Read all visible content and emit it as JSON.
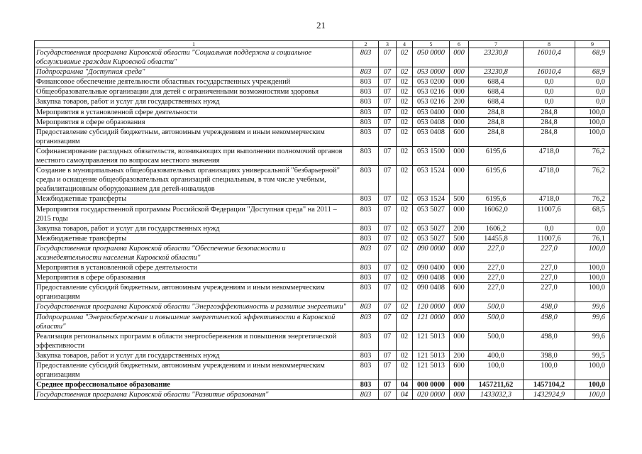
{
  "page_number": "21",
  "columns": [
    "1",
    "2",
    "3",
    "4",
    "5",
    "6",
    "7",
    "8",
    "9"
  ],
  "rows": [
    {
      "style": "italic",
      "c": [
        "Государственная программа Кировской области \"Социальная поддержка и социальное обслуживание граждан Кировской области\"",
        "803",
        "07",
        "02",
        "050 0000",
        "000",
        "23230,8",
        "16010,4",
        "68,9"
      ]
    },
    {
      "style": "italic",
      "c": [
        "Подпрограмма \"Доступная среда\"",
        "803",
        "07",
        "02",
        "053 0000",
        "000",
        "23230,8",
        "16010,4",
        "68,9"
      ]
    },
    {
      "style": "normal",
      "c": [
        "Финансовое обеспечение деятельности областных государственных учреждений",
        "803",
        "07",
        "02",
        "053 0200",
        "000",
        "688,4",
        "0,0",
        "0,0"
      ]
    },
    {
      "style": "normal",
      "c": [
        "Общеобразовательные организации для детей с ограниченными возможностями здоровья",
        "803",
        "07",
        "02",
        "053 0216",
        "000",
        "688,4",
        "0,0",
        "0,0"
      ]
    },
    {
      "style": "normal",
      "c": [
        "Закупка товаров, работ и услуг для государственных нужд",
        "803",
        "07",
        "02",
        "053 0216",
        "200",
        "688,4",
        "0,0",
        "0,0"
      ]
    },
    {
      "style": "normal",
      "c": [
        "Мероприятия в установленной сфере деятельности",
        "803",
        "07",
        "02",
        "053 0400",
        "000",
        "284,8",
        "284,8",
        "100,0"
      ]
    },
    {
      "style": "normal",
      "c": [
        "Мероприятия в сфере образования",
        "803",
        "07",
        "02",
        "053 0408",
        "000",
        "284,8",
        "284,8",
        "100,0"
      ]
    },
    {
      "style": "normal",
      "c": [
        "Предоставление субсидий бюджетным, автономным учреждениям и иным некоммерческим организациям",
        "803",
        "07",
        "02",
        "053 0408",
        "600",
        "284,8",
        "284,8",
        "100,0"
      ]
    },
    {
      "style": "normal",
      "c": [
        "Софинансирование расходных обязательств, возникающих при выполнении полномочий органов местного самоуправления по вопросам местного значения",
        "803",
        "07",
        "02",
        "053 1500",
        "000",
        "6195,6",
        "4718,0",
        "76,2"
      ]
    },
    {
      "style": "normal",
      "c": [
        "Создание в муниципальных общеобразовательных организациях универсальной \"безбарьерной\" среды и оснащение общеобразовательных организаций специальным, в том числе учебным, реабилитационным оборудованием для детей-инвалидов",
        "803",
        "07",
        "02",
        "053 1524",
        "000",
        "6195,6",
        "4718,0",
        "76,2"
      ]
    },
    {
      "style": "normal",
      "c": [
        "Межбюджетные трансферты",
        "803",
        "07",
        "02",
        "053 1524",
        "500",
        "6195,6",
        "4718,0",
        "76,2"
      ]
    },
    {
      "style": "normal",
      "c": [
        "Мероприятия государственной программы Российской Федерации \"Доступная среда\" на 2011 – 2015 годы",
        "803",
        "07",
        "02",
        "053 5027",
        "000",
        "16062,0",
        "11007,6",
        "68,5"
      ]
    },
    {
      "style": "normal",
      "c": [
        "Закупка товаров, работ и услуг для государственных нужд",
        "803",
        "07",
        "02",
        "053 5027",
        "200",
        "1606,2",
        "0,0",
        "0,0"
      ]
    },
    {
      "style": "normal",
      "c": [
        "Межбюджетные трансферты",
        "803",
        "07",
        "02",
        "053 5027",
        "500",
        "14455,8",
        "11007,6",
        "76,1"
      ]
    },
    {
      "style": "italic",
      "c": [
        "Государственная программа Кировской области \"Обеспечение безопасности и жизнедеятельности населения Кировской области\"",
        "803",
        "07",
        "02",
        "090 0000",
        "000",
        "227,0",
        "227,0",
        "100,0"
      ]
    },
    {
      "style": "normal",
      "c": [
        "Мероприятия в установленной сфере деятельности",
        "803",
        "07",
        "02",
        "090 0400",
        "000",
        "227,0",
        "227,0",
        "100,0"
      ]
    },
    {
      "style": "normal",
      "c": [
        "Мероприятия в сфере образования",
        "803",
        "07",
        "02",
        "090 0408",
        "000",
        "227,0",
        "227,0",
        "100,0"
      ]
    },
    {
      "style": "normal",
      "c": [
        "Предоставление субсидий бюджетным, автономным учреждениям и иным некоммерческим организациям",
        "803",
        "07",
        "02",
        "090 0408",
        "600",
        "227,0",
        "227,0",
        "100,0"
      ]
    },
    {
      "style": "italic",
      "c": [
        "Государственная программа Кировской области \"Энергоэффективность и развитие энергетики\"",
        "803",
        "07",
        "02",
        "120 0000",
        "000",
        "500,0",
        "498,0",
        "99,6"
      ]
    },
    {
      "style": "italic",
      "c": [
        "Подпрограмма \"Энергосбережение и повышение энергетической эффективности в Кировской области\"",
        "803",
        "07",
        "02",
        "121 0000",
        "000",
        "500,0",
        "498,0",
        "99,6"
      ]
    },
    {
      "style": "normal",
      "c": [
        "Реализация региональных программ в области энергосбережения и повышения энергетической эффективности",
        "803",
        "07",
        "02",
        "121 5013",
        "000",
        "500,0",
        "498,0",
        "99,6"
      ]
    },
    {
      "style": "normal",
      "c": [
        "Закупка товаров, работ и услуг для государственных нужд",
        "803",
        "07",
        "02",
        "121 5013",
        "200",
        "400,0",
        "398,0",
        "99,5"
      ]
    },
    {
      "style": "normal",
      "c": [
        "Предоставление субсидий бюджетным, автономным учреждениям и иным некоммерческим организациям",
        "803",
        "07",
        "02",
        "121 5013",
        "600",
        "100,0",
        "100,0",
        "100,0"
      ]
    },
    {
      "style": "bold",
      "c": [
        "Среднее профессиональное образование",
        "803",
        "07",
        "04",
        "000 0000",
        "000",
        "1457211,62",
        "1457104,2",
        "100,0"
      ]
    },
    {
      "style": "italic",
      "c": [
        "Государственная программа Кировской области \"Развитие образования\"",
        "803",
        "07",
        "04",
        "020 0000",
        "000",
        "1433032,3",
        "1432924,9",
        "100,0"
      ]
    }
  ]
}
